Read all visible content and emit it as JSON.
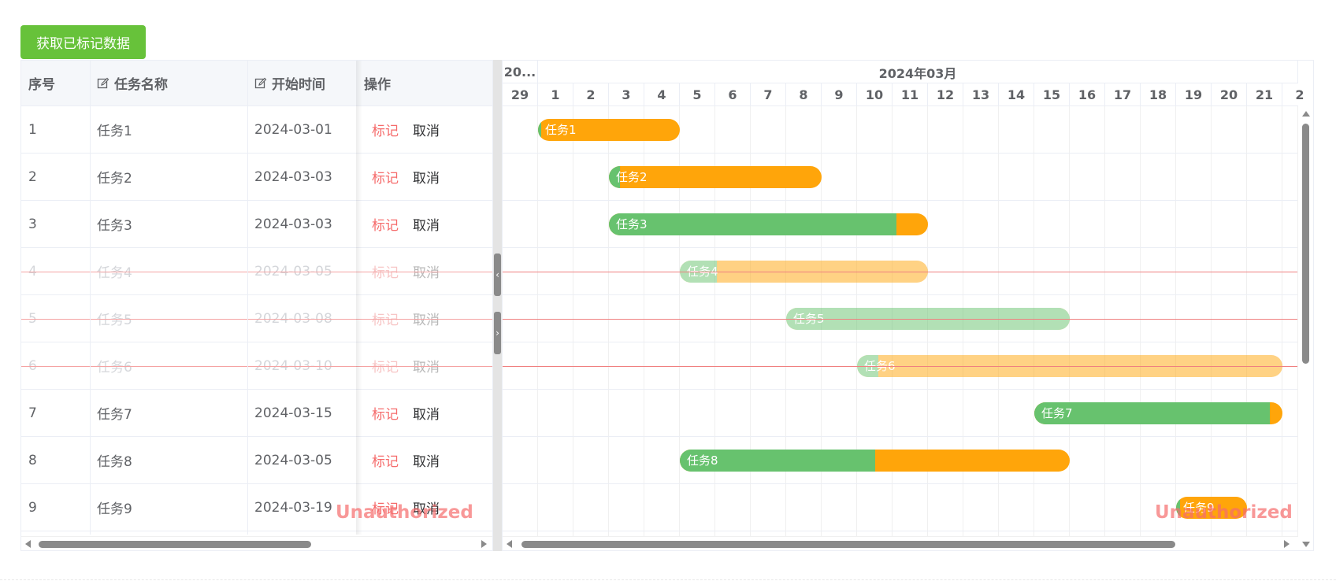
{
  "toolbar": {
    "get_marked_label": "获取已标记数据"
  },
  "table": {
    "headers": {
      "index": "序号",
      "name": "任务名称",
      "start": "开始时间",
      "actions": "操作"
    },
    "header_icons": {
      "name": "edit-icon",
      "start": "edit-icon"
    },
    "mark_label": "标记",
    "cancel_label": "取消",
    "rows": [
      {
        "index": "1",
        "name": "任务1",
        "start": "2024-03-01",
        "struck": false
      },
      {
        "index": "2",
        "name": "任务2",
        "start": "2024-03-03",
        "struck": false
      },
      {
        "index": "3",
        "name": "任务3",
        "start": "2024-03-03",
        "struck": false
      },
      {
        "index": "4",
        "name": "任务4",
        "start": "2024-03-05",
        "struck": true
      },
      {
        "index": "5",
        "name": "任务5",
        "start": "2024-03-08",
        "struck": true
      },
      {
        "index": "6",
        "name": "任务6",
        "start": "2024-03-10",
        "struck": true
      },
      {
        "index": "7",
        "name": "任务7",
        "start": "2024-03-15",
        "struck": false
      },
      {
        "index": "8",
        "name": "任务8",
        "start": "2024-03-05",
        "struck": false
      },
      {
        "index": "9",
        "name": "任务9",
        "start": "2024-03-19",
        "struck": false
      }
    ]
  },
  "gantt": {
    "prev_month_label": "20...",
    "month_label": "2024年03月",
    "days": [
      "29",
      "1",
      "2",
      "3",
      "4",
      "5",
      "6",
      "7",
      "8",
      "9",
      "10",
      "11",
      "12",
      "13",
      "14",
      "15",
      "16",
      "17",
      "18",
      "19",
      "20",
      "21",
      "2"
    ],
    "bars": [
      {
        "label": "任务1",
        "start": 1,
        "end": 5,
        "progress": 0.02,
        "faded": false
      },
      {
        "label": "任务2",
        "start": 3,
        "end": 9,
        "progress": 0.05,
        "faded": false
      },
      {
        "label": "任务3",
        "start": 3,
        "end": 12,
        "progress": 0.9,
        "faded": false
      },
      {
        "label": "任务4",
        "start": 5,
        "end": 12,
        "progress": 0.15,
        "faded": true
      },
      {
        "label": "任务5",
        "start": 8,
        "end": 16,
        "progress": 1.0,
        "faded": true
      },
      {
        "label": "任务6",
        "start": 10,
        "end": 22,
        "progress": 0.05,
        "faded": true
      },
      {
        "label": "任务7",
        "start": 15,
        "end": 22,
        "progress": 0.95,
        "faded": false
      },
      {
        "label": "任务8",
        "start": 5,
        "end": 16,
        "progress": 0.5,
        "faded": false
      },
      {
        "label": "任务9",
        "start": 19,
        "end": 21,
        "progress": 0.05,
        "faded": false
      }
    ],
    "colors": {
      "done": "#67c26e",
      "remaining": "#ffa50a",
      "strike": "#f08080"
    }
  },
  "watermarks": [
    "Unauthorized",
    "Unauthorized"
  ],
  "splitter": {
    "collapse_left_glyph": "‹",
    "collapse_right_glyph": "›"
  }
}
